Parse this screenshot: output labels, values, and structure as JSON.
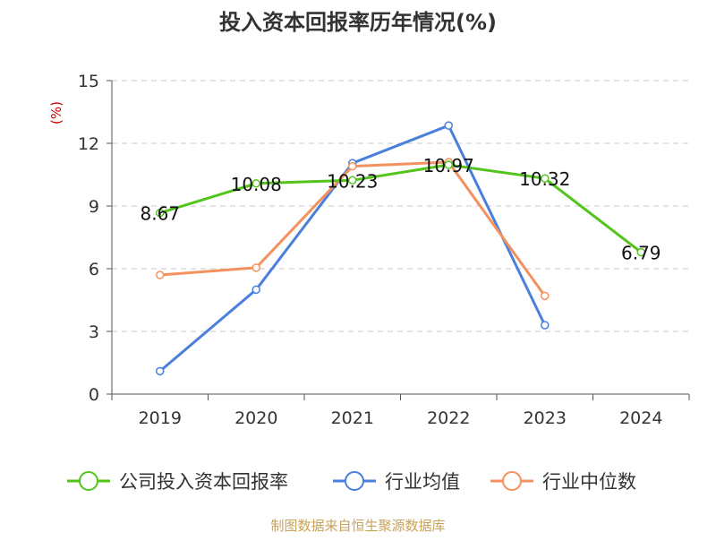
{
  "source": "制图数据来自恒生聚源数据库",
  "chart_data": {
    "type": "line",
    "title": "投入资本回报率历年情况(%)",
    "ylabel": "(%)",
    "xlabel": "",
    "ylim": [
      0,
      15
    ],
    "yticks": [
      0,
      3,
      6,
      9,
      12,
      15
    ],
    "grid": true,
    "legend_position": "bottom",
    "categories": [
      "2019",
      "2020",
      "2021",
      "2022",
      "2023",
      "2024"
    ],
    "series": [
      {
        "name": "公司投入资本回报率",
        "color": "#52c41a",
        "values": [
          8.67,
          10.08,
          10.23,
          10.97,
          10.32,
          6.79
        ],
        "labels": [
          "8.67",
          "10.08",
          "10.23",
          "10.97",
          "10.32",
          "6.79"
        ]
      },
      {
        "name": "行业均值",
        "color": "#4a7fdc",
        "values": [
          1.1,
          5.0,
          11.05,
          12.85,
          3.3,
          null
        ]
      },
      {
        "name": "行业中位数",
        "color": "#f4915e",
        "values": [
          5.7,
          6.05,
          10.9,
          11.1,
          4.7,
          null
        ]
      }
    ]
  }
}
